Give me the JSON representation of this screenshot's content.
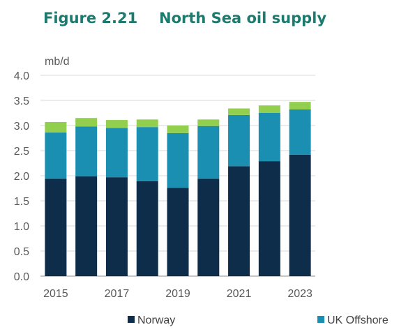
{
  "figure": {
    "label": "Figure 2.21",
    "title": "North Sea oil supply"
  },
  "chart_data": {
    "type": "bar",
    "stacked": true,
    "title": "North Sea oil supply",
    "ylabel": "mb/d",
    "ylim": [
      0,
      4.0
    ],
    "yticks": [
      "0.0",
      "0.5",
      "1.0",
      "1.5",
      "2.0",
      "2.5",
      "3.0",
      "3.5",
      "4.0"
    ],
    "categories": [
      "2015",
      "2016",
      "2017",
      "2018",
      "2019",
      "2020",
      "2021",
      "2022",
      "2023"
    ],
    "x_tick_labels": [
      "2015",
      "",
      "2017",
      "",
      "2019",
      "",
      "2021",
      "",
      "2023"
    ],
    "grid": "horizontal",
    "legend_position": "bottom",
    "series": [
      {
        "name": "Norway",
        "color": "#0d2d4a",
        "values": [
          1.94,
          1.99,
          1.97,
          1.89,
          1.76,
          1.94,
          2.19,
          2.29,
          2.42
        ]
      },
      {
        "name": "UK Offshore",
        "color": "#1a8fb1",
        "values": [
          0.92,
          0.99,
          0.98,
          1.08,
          1.09,
          1.05,
          1.02,
          0.96,
          0.9
        ]
      },
      {
        "name": "",
        "color": "#92cf4e",
        "values": [
          0.21,
          0.17,
          0.16,
          0.15,
          0.15,
          0.13,
          0.13,
          0.15,
          0.15
        ]
      }
    ],
    "legend": [
      "Norway",
      "UK Offshore"
    ]
  }
}
